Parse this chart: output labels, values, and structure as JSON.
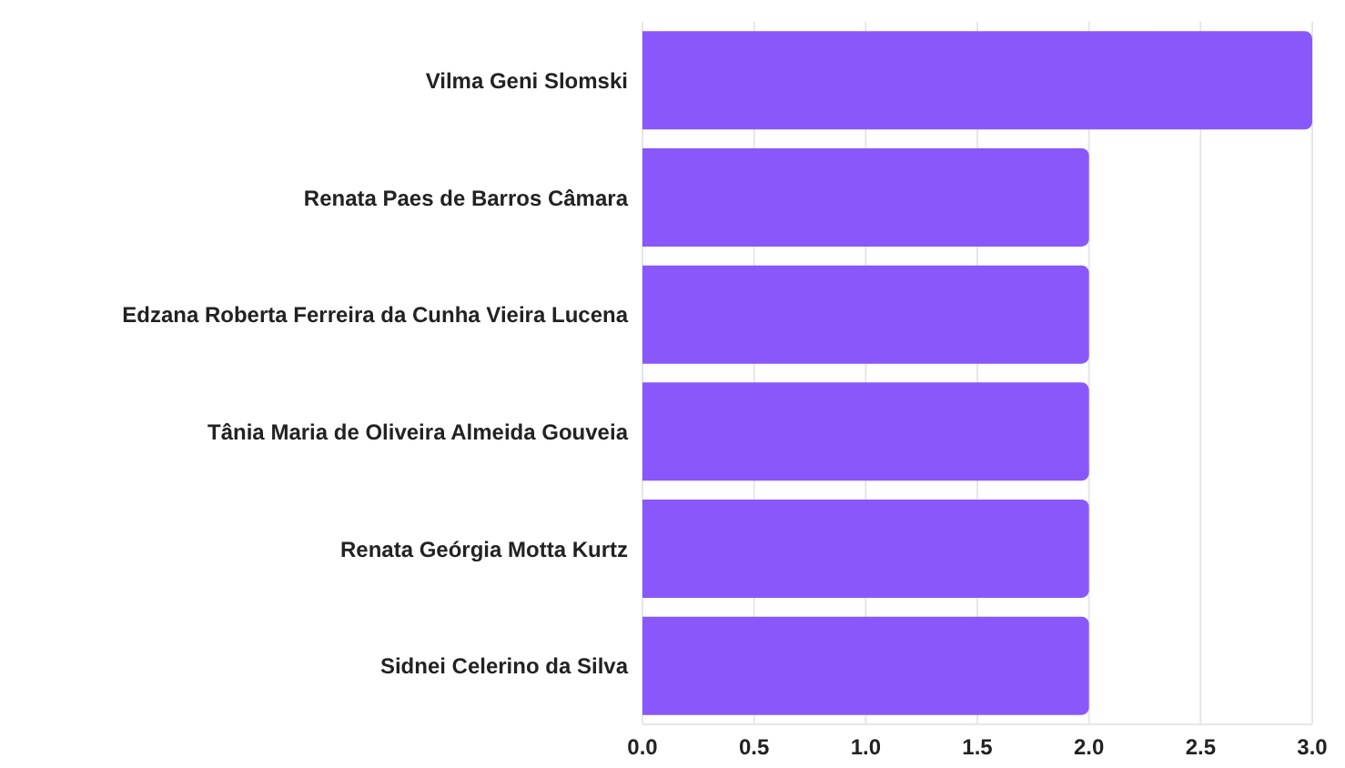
{
  "chart_data": {
    "type": "bar",
    "orientation": "horizontal",
    "categories": [
      "Vilma Geni Slomski",
      "Renata Paes de Barros Câmara",
      "Edzana Roberta Ferreira da Cunha Vieira Lucena",
      "Tânia Maria de Oliveira Almeida Gouveia",
      "Renata Geórgia Motta Kurtz",
      "Sidnei Celerino da Silva"
    ],
    "values": [
      3,
      2,
      2,
      2,
      2,
      2
    ],
    "color": "#8a57fb",
    "xlim": [
      0,
      3
    ],
    "xticks": [
      {
        "value": 0,
        "label": "0.0"
      },
      0.5,
      {
        "value": 1,
        "label": "1.0"
      },
      1.5,
      {
        "value": 2,
        "label": "2.0"
      },
      2.5,
      {
        "value": 3,
        "label": "3.0"
      }
    ],
    "grid": "x"
  }
}
